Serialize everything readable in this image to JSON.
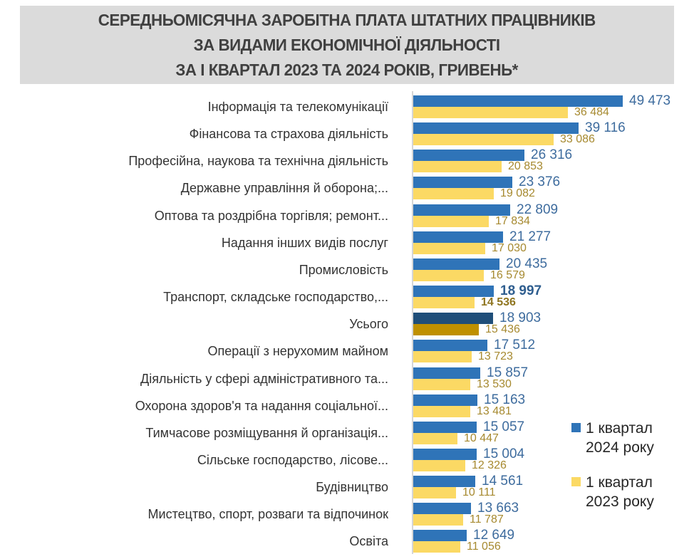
{
  "title": {
    "line1": "СЕРЕДНЬОМІСЯЧНА ЗАРОБІТНА ПЛАТА ШТАТНИХ ПРАЦІВНИКІВ",
    "line2": "ЗА ВИДАМИ ЕКОНОМІЧНОЇ ДІЯЛЬНОСТІ",
    "line3": "ЗА І КВАРТАЛ 2023 ТА 2024 РОКІВ, ГРИВЕНЬ*"
  },
  "chart_data": {
    "type": "bar",
    "orientation": "horizontal",
    "unit": "гривень",
    "xmax": 49473,
    "grid": false,
    "legend_position": "right",
    "series_names": [
      "1 квартал 2024 року",
      "1 квартал 2023 року"
    ],
    "colors": {
      "bar_2024": "#2f74b8",
      "bar_2023": "#fbd964",
      "bar_2024_total": "#1f4e79",
      "bar_2023_total": "#bf9000",
      "label_2024": "#3e6c9e",
      "label_2023": "#a6892f"
    },
    "rows": [
      {
        "category": "Інформація та телекомунікації",
        "v2024": 49473,
        "v2023": 36484,
        "highlight": false,
        "bold": false
      },
      {
        "category": "Фінансова та страхова діяльність",
        "v2024": 39116,
        "v2023": 33086,
        "highlight": false,
        "bold": false
      },
      {
        "category": "Професійна, наукова та технічна діяльність",
        "v2024": 26316,
        "v2023": 20853,
        "highlight": false,
        "bold": false
      },
      {
        "category": "Державне управління й оборона;...",
        "v2024": 23376,
        "v2023": 19082,
        "highlight": false,
        "bold": false
      },
      {
        "category": "Оптова та роздрібна торгівля; ремонт...",
        "v2024": 22809,
        "v2023": 17834,
        "highlight": false,
        "bold": false
      },
      {
        "category": "Надання інших видів послуг",
        "v2024": 21277,
        "v2023": 17030,
        "highlight": false,
        "bold": false
      },
      {
        "category": "Промисловість",
        "v2024": 20435,
        "v2023": 16579,
        "highlight": false,
        "bold": false
      },
      {
        "category": "Транспорт, складське господарство,...",
        "v2024": 18997,
        "v2023": 14536,
        "highlight": false,
        "bold": true
      },
      {
        "category": "Усього",
        "v2024": 18903,
        "v2023": 15436,
        "highlight": true,
        "bold": false
      },
      {
        "category": "Операції з нерухомим майном",
        "v2024": 17512,
        "v2023": 13723,
        "highlight": false,
        "bold": false
      },
      {
        "category": "Діяльність у сфері адміністративного та...",
        "v2024": 15857,
        "v2023": 13530,
        "highlight": false,
        "bold": false
      },
      {
        "category": "Охорона здоров'я та надання соціальної...",
        "v2024": 15163,
        "v2023": 13481,
        "highlight": false,
        "bold": false
      },
      {
        "category": "Тимчасове розміщування й організація...",
        "v2024": 15057,
        "v2023": 10447,
        "highlight": false,
        "bold": false
      },
      {
        "category": "Сільське господарство, лісове...",
        "v2024": 15004,
        "v2023": 12326,
        "highlight": false,
        "bold": false
      },
      {
        "category": "Будівництво",
        "v2024": 14561,
        "v2023": 10111,
        "highlight": false,
        "bold": false
      },
      {
        "category": "Мистецтво, спорт, розваги та відпочинок",
        "v2024": 13663,
        "v2023": 11787,
        "highlight": false,
        "bold": false
      },
      {
        "category": "Освіта",
        "v2024": 12649,
        "v2023": 11056,
        "highlight": false,
        "bold": false
      }
    ]
  },
  "legend": {
    "items": [
      {
        "label": "1 квартал 2024 року",
        "color": "#2f74b8"
      },
      {
        "label": "1 квартал 2023 року",
        "color": "#fbd964"
      }
    ]
  }
}
